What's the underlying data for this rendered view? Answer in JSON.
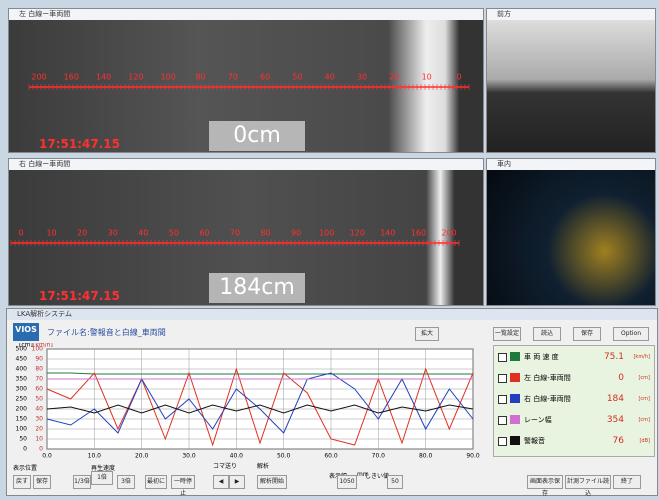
{
  "windows": {
    "left_cam": {
      "title": "左 白線ー車両間",
      "timestamp": "17:51:47.15",
      "distance": "0cm",
      "ruler": [
        "200",
        "160",
        "140",
        "120",
        "100",
        "80",
        "70",
        "60",
        "50",
        "40",
        "30",
        "20",
        "10",
        "0"
      ]
    },
    "front_cam": {
      "title": "前方"
    },
    "right_cam": {
      "title": "右 白線ー車両間",
      "timestamp": "17:51:47.15",
      "distance": "184cm",
      "ruler": [
        "0",
        "10",
        "20",
        "30",
        "40",
        "50",
        "60",
        "70",
        "80",
        "90",
        "100",
        "120",
        "140",
        "160",
        "200"
      ]
    },
    "inside_cam": {
      "title": "車内"
    }
  },
  "analysis": {
    "title": "LKA解析システム",
    "logo": "VIOS",
    "file_name": "ファイル名:警報音と白線_車両間",
    "zoom": "拡大",
    "buttons": [
      "一覧設定",
      "読込",
      "保存",
      "Option"
    ],
    "controls": {
      "position": "表示位置",
      "back": "戻す",
      "save": "保存",
      "speed_third": "1/3倍",
      "speed_label": "再生速度",
      "speed_one": "1倍",
      "speed_three": "3倍",
      "first": "最初に",
      "pause": "一時停止",
      "frame": "コマ送り",
      "prev": "◀",
      "next": "▶",
      "analysis": "解析",
      "start": "解析開始",
      "width": "表示幅",
      "width_value": "1050",
      "width_unit": "mm",
      "threshold": "しきい値",
      "threshold_value": "50",
      "screen_save": "画面表示保存",
      "load_file": "計測ファイル読込",
      "exit": "終了"
    }
  },
  "chart_data": {
    "type": "line",
    "y_label": "[cm]",
    "y2_label": "[km/h]",
    "x": [
      0,
      5,
      10,
      15,
      20,
      25,
      30,
      35,
      40,
      45,
      50,
      55,
      60,
      65,
      70,
      75,
      80,
      85,
      90
    ],
    "xlim": [
      0,
      90
    ],
    "xticks": [
      {
        "value": 0,
        "label": "0.0"
      },
      {
        "value": 10,
        "label": "10.0"
      },
      {
        "value": 20,
        "label": "20.0"
      },
      {
        "value": 30,
        "label": "30.0"
      },
      {
        "value": 40,
        "label": "40.0"
      },
      {
        "value": 50,
        "label": "50.0"
      },
      {
        "value": 60,
        "label": "60.0"
      },
      {
        "value": 70,
        "label": "70.0"
      },
      {
        "value": 80,
        "label": "80.0"
      },
      {
        "value": 90,
        "label": "90.0"
      }
    ],
    "ylim": [
      0,
      500
    ],
    "yticks": [
      0,
      50,
      100,
      150,
      200,
      250,
      300,
      350,
      400,
      450,
      500
    ],
    "y2lim": [
      0,
      100
    ],
    "y2ticks": [
      0,
      10,
      20,
      30,
      40,
      50,
      60,
      70,
      80,
      90,
      100
    ],
    "grid": true,
    "series": [
      {
        "name": "車 両 速 度",
        "color": "#1e7a3c",
        "axis": "y2",
        "current": "75.1",
        "unit": "[km/h]",
        "values": [
          76,
          76,
          75,
          75,
          75,
          75,
          75,
          75,
          75,
          75,
          75,
          75,
          75,
          75,
          75,
          75,
          75,
          75,
          75
        ]
      },
      {
        "name": "左 白線-車両間",
        "color": "#e03020",
        "current": "0",
        "unit": "[cm]",
        "values": [
          300,
          250,
          380,
          100,
          350,
          50,
          380,
          20,
          400,
          30,
          380,
          280,
          50,
          20,
          350,
          30,
          400,
          100,
          380
        ]
      },
      {
        "name": "右 白線-車両間",
        "color": "#2040c0",
        "current": "184",
        "unit": "[cm]",
        "values": [
          150,
          120,
          200,
          80,
          350,
          150,
          250,
          100,
          300,
          200,
          80,
          350,
          380,
          300,
          150,
          350,
          100,
          300,
          150
        ]
      },
      {
        "name": "レーン幅",
        "color": "#d070d0",
        "current": "354",
        "unit": "[cm]",
        "values": [
          350,
          350,
          350,
          350,
          350,
          350,
          350,
          350,
          350,
          350,
          350,
          350,
          350,
          350,
          350,
          350,
          350,
          350,
          350
        ]
      },
      {
        "name": "警報音",
        "color": "#111111",
        "axis": "y2",
        "current": "76",
        "unit": "[dB]",
        "values": [
          40,
          42,
          36,
          44,
          36,
          44,
          36,
          44,
          38,
          44,
          36,
          44,
          38,
          44,
          36,
          42,
          38,
          44,
          40
        ]
      }
    ]
  }
}
